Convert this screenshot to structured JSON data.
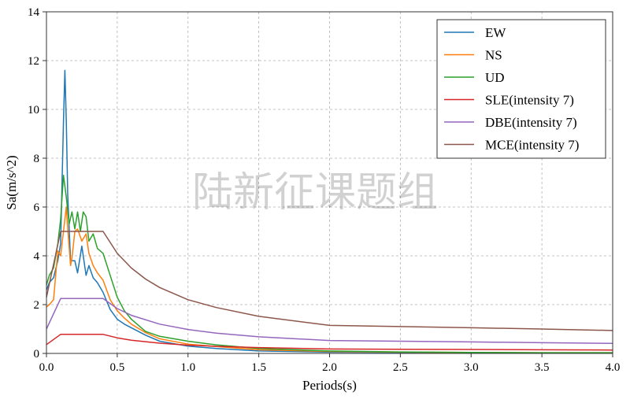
{
  "watermark": "陆新征课题组",
  "chart_data": {
    "type": "line",
    "xlabel": "Periods(s)",
    "ylabel": "Sa(m/s^2)",
    "xlim": [
      0,
      4
    ],
    "ylim": [
      0,
      14
    ],
    "xticks": [
      0.0,
      0.5,
      1.0,
      1.5,
      2.0,
      2.5,
      3.0,
      3.5,
      4.0
    ],
    "xtick_labels": [
      "0.0",
      "0.5",
      "1.0",
      "1.5",
      "2.0",
      "2.5",
      "3.0",
      "3.5",
      "4.0"
    ],
    "yticks": [
      0,
      2,
      4,
      6,
      8,
      10,
      12,
      14
    ],
    "ytick_labels": [
      "0",
      "2",
      "4",
      "6",
      "8",
      "10",
      "12",
      "14"
    ],
    "grid": true,
    "legend_position": "top-right",
    "series": [
      {
        "name": "EW",
        "color": "#1f77b4",
        "x": [
          0,
          0.02,
          0.05,
          0.08,
          0.1,
          0.12,
          0.13,
          0.14,
          0.15,
          0.17,
          0.2,
          0.22,
          0.25,
          0.28,
          0.3,
          0.33,
          0.36,
          0.4,
          0.45,
          0.5,
          0.55,
          0.6,
          0.7,
          0.8,
          1.0,
          1.2,
          1.5,
          2.0,
          2.5,
          3.0,
          3.5,
          4.0
        ],
        "y": [
          2.6,
          2.9,
          3.1,
          3.8,
          4.5,
          9.5,
          11.6,
          9.5,
          6.5,
          3.8,
          3.8,
          3.3,
          4.4,
          3.2,
          3.6,
          3.1,
          2.9,
          2.5,
          1.8,
          1.4,
          1.2,
          1.05,
          0.75,
          0.5,
          0.3,
          0.2,
          0.1,
          0.05,
          0.04,
          0.03,
          0.02,
          0.02
        ]
      },
      {
        "name": "NS",
        "color": "#ff7f0e",
        "x": [
          0,
          0.02,
          0.05,
          0.08,
          0.1,
          0.12,
          0.14,
          0.15,
          0.17,
          0.18,
          0.2,
          0.22,
          0.25,
          0.28,
          0.3,
          0.33,
          0.36,
          0.4,
          0.45,
          0.5,
          0.55,
          0.6,
          0.7,
          0.8,
          1.0,
          1.2,
          1.5,
          2.0,
          2.5,
          3.0,
          3.5,
          4.0
        ],
        "y": [
          1.9,
          2.0,
          2.2,
          4.2,
          4.0,
          5.0,
          6.0,
          5.1,
          3.6,
          3.9,
          5.0,
          5.1,
          4.6,
          4.9,
          4.1,
          3.6,
          3.3,
          3.0,
          2.2,
          1.75,
          1.45,
          1.2,
          0.85,
          0.6,
          0.38,
          0.28,
          0.15,
          0.08,
          0.05,
          0.04,
          0.03,
          0.03
        ]
      },
      {
        "name": "UD",
        "color": "#2ca02c",
        "x": [
          0,
          0.02,
          0.05,
          0.08,
          0.1,
          0.12,
          0.14,
          0.16,
          0.18,
          0.2,
          0.22,
          0.24,
          0.26,
          0.28,
          0.3,
          0.33,
          0.36,
          0.4,
          0.45,
          0.5,
          0.55,
          0.6,
          0.7,
          0.8,
          1.0,
          1.2,
          1.5,
          2.0,
          2.5,
          3.0,
          3.5,
          4.0
        ],
        "y": [
          2.8,
          3.2,
          3.5,
          4.5,
          5.5,
          7.3,
          6.4,
          5.3,
          5.8,
          5.1,
          5.8,
          5.0,
          5.8,
          5.6,
          4.6,
          4.9,
          4.3,
          4.1,
          3.2,
          2.3,
          1.75,
          1.4,
          0.9,
          0.7,
          0.5,
          0.35,
          0.2,
          0.1,
          0.06,
          0.04,
          0.03,
          0.03
        ]
      },
      {
        "name": "SLE(intensity 7)",
        "color": "#d62728",
        "x": [
          0,
          0.1,
          0.4,
          0.5,
          0.6,
          0.8,
          1.0,
          1.2,
          1.5,
          2.0,
          2.5,
          3.0,
          3.5,
          4.0
        ],
        "y": [
          0.36,
          0.78,
          0.78,
          0.64,
          0.54,
          0.42,
          0.34,
          0.29,
          0.24,
          0.18,
          0.17,
          0.16,
          0.15,
          0.14
        ]
      },
      {
        "name": "DBE(intensity 7)",
        "color": "#9467bd",
        "x": [
          0,
          0.1,
          0.4,
          0.5,
          0.6,
          0.8,
          1.0,
          1.2,
          1.5,
          2.0,
          2.5,
          3.0,
          3.5,
          4.0
        ],
        "y": [
          1.0,
          2.25,
          2.25,
          1.84,
          1.56,
          1.2,
          0.98,
          0.83,
          0.68,
          0.53,
          0.5,
          0.47,
          0.44,
          0.41
        ]
      },
      {
        "name": "MCE(intensity 7)",
        "color": "#8c564b",
        "x": [
          0,
          0.1,
          0.4,
          0.5,
          0.6,
          0.7,
          0.8,
          1.0,
          1.2,
          1.5,
          2.0,
          2.5,
          3.0,
          3.5,
          4.0
        ],
        "y": [
          2.3,
          5.0,
          5.0,
          4.1,
          3.5,
          3.05,
          2.7,
          2.2,
          1.88,
          1.52,
          1.15,
          1.1,
          1.05,
          1.0,
          0.94
        ]
      }
    ]
  }
}
